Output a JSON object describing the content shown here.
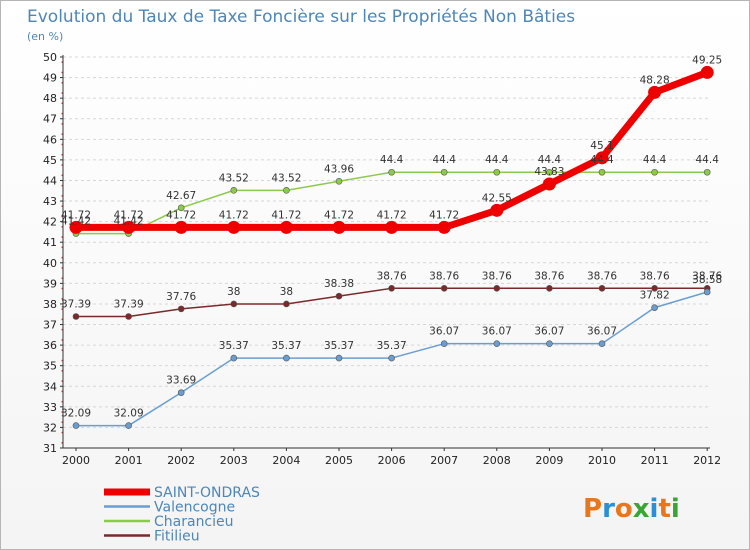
{
  "chart_data": {
    "type": "line",
    "title": "Evolution du Taux de Taxe Foncière sur les Propriétés Non Bâties",
    "unit_label": "(en %)",
    "x": [
      "2000",
      "2001",
      "2002",
      "2003",
      "2004",
      "2005",
      "2006",
      "2007",
      "2008",
      "2009",
      "2010",
      "2011",
      "2012"
    ],
    "ylim": [
      31,
      50
    ],
    "y_ticks": [
      31,
      32,
      33,
      34,
      35,
      36,
      37,
      38,
      39,
      40,
      41,
      42,
      43,
      44,
      45,
      46,
      47,
      48,
      49,
      50
    ],
    "grid": "horizontal dashed",
    "legend_position": "bottom-left",
    "series": [
      {
        "name": "Charancieu",
        "color": "#8ccb4a",
        "values": [
          41.42,
          41.42,
          42.67,
          43.52,
          43.52,
          43.96,
          44.4,
          44.4,
          44.4,
          44.4,
          44.4,
          44.4,
          44.4
        ],
        "labels": [
          "41.42",
          "41.42",
          "42.67",
          "43.52",
          "43.52",
          "43.96",
          "44.4",
          "44.4",
          "44.4",
          "44.4",
          "44.4",
          "44.4",
          "44.4"
        ]
      },
      {
        "name": "Fitilieu",
        "color": "#7a2a2a",
        "values": [
          37.39,
          37.39,
          37.76,
          38,
          38,
          38.38,
          38.76,
          38.76,
          38.76,
          38.76,
          38.76,
          38.76,
          38.76
        ],
        "labels": [
          "37.39",
          "37.39",
          "37.76",
          "38",
          "38",
          "38.38",
          "38.76",
          "38.76",
          "38.76",
          "38.76",
          "38.76",
          "38.76",
          "38.76"
        ]
      },
      {
        "name": "Valencogne",
        "color": "#6a9ed0",
        "values": [
          32.09,
          32.09,
          33.69,
          35.37,
          35.37,
          35.37,
          35.37,
          36.07,
          36.07,
          36.07,
          36.07,
          37.82,
          38.58
        ],
        "labels": [
          "32.09",
          "32.09",
          "33.69",
          "35.37",
          "35.37",
          "35.37",
          "35.37",
          "36.07",
          "36.07",
          "36.07",
          "36.07",
          "37.82",
          "38.58"
        ]
      },
      {
        "name": "SAINT-ONDRAS",
        "color": "#ee0000",
        "values": [
          41.72,
          41.72,
          41.72,
          41.72,
          41.72,
          41.72,
          41.72,
          41.72,
          42.55,
          43.83,
          45.1,
          48.28,
          49.25
        ],
        "labels": [
          "41.72",
          "41.72",
          "41.72",
          "41.72",
          "41.72",
          "41.72",
          "41.72",
          "41.72",
          "42.55",
          "43.83",
          "45.1",
          "48.28",
          "49.25"
        ]
      }
    ],
    "legend": [
      "SAINT-ONDRAS",
      "Valencogne",
      "Charancieu",
      "Fitilieu"
    ]
  },
  "logo": {
    "text": "Proxiti",
    "letters": [
      "P",
      "r",
      "o",
      "x",
      "i",
      "t",
      "i"
    ],
    "colors": [
      "#e8761c",
      "#2a8fd4",
      "#e8761c",
      "#3aa535",
      "#2a8fd4",
      "#e8761c",
      "#3aa535"
    ]
  }
}
